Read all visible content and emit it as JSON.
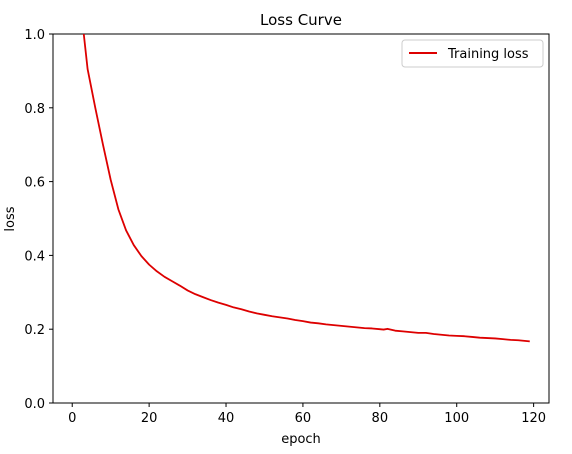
{
  "chart_data": {
    "type": "line",
    "title": "Loss Curve",
    "xlabel": "epoch",
    "ylabel": "loss",
    "xlim": [
      -5,
      124
    ],
    "ylim": [
      0,
      1.0
    ],
    "xticks": [
      0,
      20,
      40,
      60,
      80,
      100,
      120
    ],
    "yticks": [
      0.0,
      0.2,
      0.4,
      0.6,
      0.8,
      1.0
    ],
    "xtick_labels": [
      "0",
      "20",
      "40",
      "60",
      "80",
      "100",
      "120"
    ],
    "ytick_labels": [
      "0.0",
      "0.2",
      "0.4",
      "0.6",
      "0.8",
      "1.0"
    ],
    "grid": false,
    "legend_position": "top-right",
    "series": [
      {
        "name": "Training loss",
        "color": "#dd0000",
        "x": [
          2,
          3,
          4,
          6,
          8,
          10,
          12,
          14,
          16,
          18,
          20,
          22,
          24,
          26,
          28,
          30,
          32,
          34,
          36,
          38,
          40,
          42,
          44,
          46,
          48,
          50,
          52,
          54,
          56,
          58,
          60,
          62,
          64,
          66,
          68,
          70,
          72,
          74,
          76,
          78,
          80,
          81,
          82,
          84,
          86,
          88,
          90,
          92,
          94,
          96,
          98,
          100,
          102,
          104,
          106,
          108,
          110,
          112,
          114,
          116,
          118,
          119
        ],
        "y": [
          1.07,
          1.0,
          0.905,
          0.8,
          0.7,
          0.605,
          0.525,
          0.468,
          0.428,
          0.398,
          0.375,
          0.357,
          0.342,
          0.33,
          0.318,
          0.305,
          0.295,
          0.287,
          0.279,
          0.272,
          0.266,
          0.259,
          0.254,
          0.248,
          0.243,
          0.239,
          0.235,
          0.232,
          0.229,
          0.225,
          0.222,
          0.218,
          0.216,
          0.213,
          0.211,
          0.209,
          0.207,
          0.205,
          0.203,
          0.202,
          0.2,
          0.199,
          0.201,
          0.196,
          0.194,
          0.192,
          0.19,
          0.19,
          0.187,
          0.185,
          0.183,
          0.182,
          0.181,
          0.179,
          0.177,
          0.176,
          0.175,
          0.173,
          0.171,
          0.17,
          0.168,
          0.167
        ]
      }
    ]
  }
}
